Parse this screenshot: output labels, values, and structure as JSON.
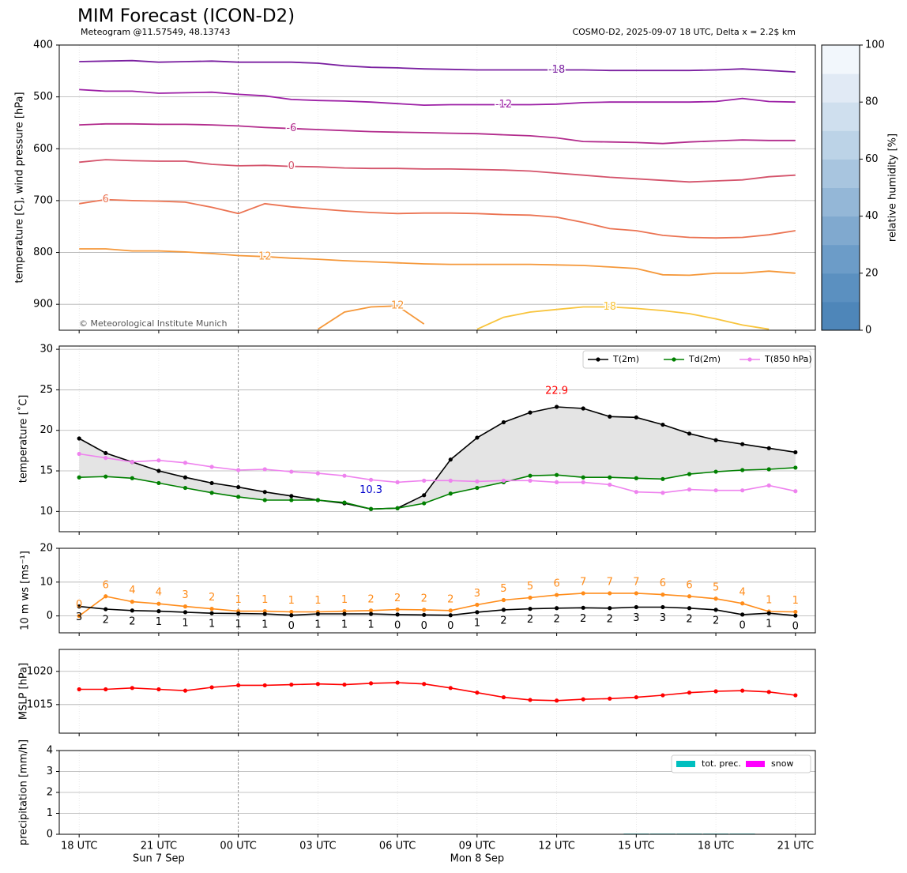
{
  "chart_data": [
    {
      "type": "contour",
      "title": "MIM Forecast (ICON-D2)",
      "subtitle": "Meteogram @11.57549, 48.13743",
      "source": "COSMO-D2, 2025-09-07 18 UTC, Delta x = 2.2$ km",
      "ylabel": "temperature [C], wind pressure [hPa]",
      "annotation": "© Meteorological Institute Munich",
      "x": [
        0,
        1,
        2,
        3,
        4,
        5,
        6,
        7,
        8,
        9,
        10,
        11,
        12,
        13,
        14,
        15,
        16,
        17,
        18,
        19,
        20,
        21,
        22,
        23,
        24,
        25,
        26,
        27
      ],
      "xlim": [
        -0.75,
        27.75
      ],
      "ylim": [
        950,
        400
      ],
      "yticks": [
        400,
        500,
        600,
        700,
        800,
        900
      ],
      "grid": true,
      "series": [
        {
          "name": "-18",
          "color": "#7a1fa0",
          "values": [
            432,
            431,
            430,
            433,
            432,
            431,
            433,
            433,
            433,
            435,
            440,
            443,
            444,
            446,
            447,
            448,
            448,
            448,
            448,
            448,
            449,
            449,
            449,
            449,
            448,
            446,
            449,
            452
          ]
        },
        {
          "name": "-12",
          "color": "#9c1fa5",
          "values": [
            486,
            489,
            489,
            493,
            492,
            491,
            495,
            498,
            505,
            507,
            508,
            510,
            513,
            516,
            515,
            515,
            515,
            515,
            514,
            511,
            510,
            510,
            510,
            510,
            509,
            503,
            509,
            510
          ]
        },
        {
          "name": "-6",
          "color": "#b22b8c",
          "values": [
            554,
            552,
            552,
            553,
            553,
            554,
            556,
            559,
            561,
            563,
            565,
            567,
            568,
            569,
            570,
            571,
            573,
            575,
            579,
            586,
            587,
            588,
            590,
            587,
            585,
            583,
            584,
            584
          ]
        },
        {
          "name": "0",
          "color": "#d4536b",
          "values": [
            626,
            621,
            623,
            624,
            624,
            630,
            633,
            632,
            634,
            635,
            637,
            638,
            638,
            639,
            639,
            640,
            641,
            643,
            647,
            651,
            655,
            658,
            661,
            664,
            662,
            660,
            654,
            651
          ]
        },
        {
          "name": "6",
          "color": "#eb7352",
          "values": [
            706,
            698,
            700,
            701,
            703,
            713,
            725,
            706,
            712,
            716,
            720,
            723,
            725,
            724,
            724,
            725,
            727,
            728,
            732,
            742,
            754,
            758,
            767,
            771,
            772,
            771,
            766,
            758
          ]
        },
        {
          "name": "12",
          "color": "#f5983a",
          "values": [
            793,
            793,
            797,
            797,
            799,
            802,
            806,
            808,
            811,
            813,
            816,
            818,
            820,
            822,
            823,
            823,
            823,
            823,
            824,
            825,
            828,
            831,
            843,
            844,
            840,
            840,
            836,
            840
          ]
        },
        {
          "name": "12",
          "color": "#f5983a",
          "values": [
            null,
            null,
            null,
            null,
            null,
            null,
            null,
            null,
            null,
            948,
            915,
            905,
            903,
            938,
            null,
            null,
            null,
            null,
            null,
            null,
            null,
            null,
            null,
            null,
            null,
            null,
            null,
            null
          ]
        },
        {
          "name": "18",
          "color": "#f8c43c",
          "values": [
            null,
            null,
            null,
            null,
            null,
            null,
            null,
            null,
            null,
            null,
            null,
            null,
            null,
            null,
            null,
            948,
            925,
            915,
            910,
            905,
            905,
            908,
            912,
            918,
            928,
            940,
            948,
            null
          ]
        }
      ],
      "colorbar": {
        "label": "relative humidity [%]",
        "lim": [
          0,
          100
        ],
        "ticks": [
          0,
          20,
          40,
          60,
          80,
          100
        ],
        "colors": [
          "#4e86b9",
          "#5b90c0",
          "#6c9cc8",
          "#80a9cf",
          "#94b7d7",
          "#a8c5df",
          "#bcd3e7",
          "#cfdfee",
          "#e1eaf5",
          "#f2f7fc"
        ]
      }
    },
    {
      "type": "line",
      "ylabel": "temperature [˚C]",
      "x": [
        0,
        1,
        2,
        3,
        4,
        5,
        6,
        7,
        8,
        9,
        10,
        11,
        12,
        13,
        14,
        15,
        16,
        17,
        18,
        19,
        20,
        21,
        22,
        23,
        24,
        25,
        26,
        27
      ],
      "xlim": [
        -0.75,
        27.75
      ],
      "ylim": [
        7.5,
        30.4
      ],
      "yticks": [
        10,
        15,
        20,
        25,
        30
      ],
      "grid": true,
      "markers": true,
      "fill_between": true,
      "fill_color": "#e4e4e4",
      "legend": "upper right",
      "max_label": "22.9",
      "max_label_color": "#ff0000",
      "min_label": "10.3",
      "min_label_color": "#0000cc",
      "series": [
        {
          "name": "T(2m)",
          "color": "#000000",
          "values": [
            19.0,
            17.2,
            16.1,
            15.0,
            14.2,
            13.5,
            13.0,
            12.4,
            11.9,
            11.4,
            11.0,
            10.3,
            10.4,
            12.0,
            16.4,
            19.1,
            21.0,
            22.2,
            22.9,
            22.7,
            21.7,
            21.6,
            20.7,
            19.6,
            18.8,
            18.3,
            17.8,
            17.3
          ]
        },
        {
          "name": "Td(2m)",
          "color": "#008000",
          "values": [
            14.2,
            14.3,
            14.1,
            13.5,
            12.9,
            12.3,
            11.8,
            11.4,
            11.4,
            11.4,
            11.1,
            10.3,
            10.4,
            11.0,
            12.2,
            12.9,
            13.6,
            14.4,
            14.5,
            14.2,
            14.2,
            14.1,
            14.0,
            14.6,
            14.9,
            15.1,
            15.2,
            15.4
          ]
        },
        {
          "name": "T(850 hPa)",
          "color": "#ee82ee",
          "values": [
            17.1,
            16.6,
            16.1,
            16.3,
            16.0,
            15.5,
            15.1,
            15.2,
            14.9,
            14.7,
            14.4,
            13.9,
            13.6,
            13.8,
            13.8,
            13.7,
            13.8,
            13.8,
            13.6,
            13.6,
            13.3,
            12.4,
            12.3,
            12.7,
            12.6,
            12.6,
            13.2,
            12.5
          ]
        }
      ]
    },
    {
      "type": "line",
      "ylabel": "10 m ws [ms⁻¹]",
      "x": [
        0,
        1,
        2,
        3,
        4,
        5,
        6,
        7,
        8,
        9,
        10,
        11,
        12,
        13,
        14,
        15,
        16,
        17,
        18,
        19,
        20,
        21,
        22,
        23,
        24,
        25,
        26,
        27
      ],
      "xlim": [
        -0.75,
        27.75
      ],
      "ylim": [
        -5,
        20
      ],
      "yticks": [
        0,
        10,
        20
      ],
      "grid": true,
      "markers": true,
      "series": [
        {
          "color": "#ff8c1a",
          "values": [
            0.0,
            5.8,
            4.2,
            3.6,
            2.8,
            2.1,
            1.4,
            1.4,
            1.2,
            1.2,
            1.4,
            1.6,
            1.9,
            1.8,
            1.6,
            3.3,
            4.7,
            5.4,
            6.2,
            6.7,
            6.7,
            6.7,
            6.3,
            5.8,
            5.1,
            3.7,
            1.3,
            1.2
          ],
          "value_labels": [
            "0",
            "6",
            "4",
            "4",
            "3",
            "2",
            "1",
            "1",
            "1",
            "1",
            "1",
            "2",
            "2",
            "2",
            "2",
            "3",
            "5",
            "5",
            "6",
            "7",
            "7",
            "7",
            "6",
            "6",
            "5",
            "4",
            "1",
            "1"
          ]
        },
        {
          "color": "#000000",
          "values": [
            2.8,
            2.0,
            1.6,
            1.4,
            1.1,
            0.8,
            0.7,
            0.6,
            0.2,
            0.6,
            0.6,
            0.6,
            0.4,
            0.3,
            0.2,
            1.1,
            1.8,
            2.1,
            2.3,
            2.4,
            2.3,
            2.6,
            2.6,
            2.3,
            1.8,
            0.4,
            0.8,
            0.1
          ],
          "value_labels": [
            "3",
            "2",
            "2",
            "1",
            "1",
            "1",
            "1",
            "1",
            "0",
            "1",
            "1",
            "1",
            "0",
            "0",
            "0",
            "1",
            "2",
            "2",
            "2",
            "2",
            "2",
            "3",
            "3",
            "2",
            "2",
            "0",
            "1",
            "0"
          ]
        }
      ]
    },
    {
      "type": "line",
      "ylabel": "MSLP [hPa]",
      "x": [
        0,
        1,
        2,
        3,
        4,
        5,
        6,
        7,
        8,
        9,
        10,
        11,
        12,
        13,
        14,
        15,
        16,
        17,
        18,
        19,
        20,
        21,
        22,
        23,
        24,
        25,
        26,
        27
      ],
      "xlim": [
        -0.75,
        27.75
      ],
      "ylim": [
        1010.7,
        1023.3
      ],
      "yticks": [
        1015,
        1020
      ],
      "grid": true,
      "markers": true,
      "series": [
        {
          "color": "#ff0000",
          "values": [
            1017.3,
            1017.3,
            1017.5,
            1017.3,
            1017.1,
            1017.6,
            1017.9,
            1017.9,
            1018.0,
            1018.1,
            1018.0,
            1018.2,
            1018.3,
            1018.1,
            1017.5,
            1016.8,
            1016.1,
            1015.7,
            1015.6,
            1015.8,
            1015.9,
            1016.1,
            1016.4,
            1016.8,
            1017.0,
            1017.1,
            1016.9,
            1016.4
          ]
        }
      ]
    },
    {
      "type": "bar",
      "ylabel": "precipitation [mm/h]",
      "x": [
        0,
        1,
        2,
        3,
        4,
        5,
        6,
        7,
        8,
        9,
        10,
        11,
        12,
        13,
        14,
        15,
        16,
        17,
        18,
        19,
        20,
        21,
        22,
        23,
        24,
        25,
        26,
        27
      ],
      "xlim": [
        -0.75,
        27.75
      ],
      "ylim": [
        0,
        4
      ],
      "yticks": [
        0,
        1,
        2,
        3,
        4
      ],
      "grid": true,
      "legend": "upper right",
      "xticks": [
        {
          "value": 0,
          "label": "18 UTC"
        },
        {
          "value": 3,
          "label": "21 UTC"
        },
        {
          "value": 6,
          "label": "00 UTC"
        },
        {
          "value": 9,
          "label": "03 UTC"
        },
        {
          "value": 12,
          "label": "06 UTC"
        },
        {
          "value": 15,
          "label": "09 UTC"
        },
        {
          "value": 18,
          "label": "12 UTC"
        },
        {
          "value": 21,
          "label": "15 UTC"
        },
        {
          "value": 24,
          "label": "18 UTC"
        },
        {
          "value": 27,
          "label": "21 UTC"
        }
      ],
      "x_dates": [
        {
          "value": 3,
          "label": "Sun 7 Sep"
        },
        {
          "value": 15,
          "label": "Mon 8 Sep"
        }
      ],
      "series": [
        {
          "name": "tot. prec.",
          "color": "#00bfbf",
          "values": [
            0,
            0,
            0,
            0,
            0,
            0,
            0,
            0,
            0,
            0,
            0,
            0,
            0,
            0,
            0,
            0,
            0,
            0,
            0,
            0,
            0,
            0.03,
            0.03,
            0.03,
            0.03,
            0.03,
            0,
            0
          ]
        },
        {
          "name": "snow",
          "color": "#ff00ff",
          "values": [
            0,
            0,
            0,
            0,
            0,
            0,
            0,
            0,
            0,
            0,
            0,
            0,
            0,
            0,
            0,
            0,
            0,
            0,
            0,
            0,
            0,
            0,
            0,
            0,
            0,
            0,
            0,
            0
          ]
        }
      ]
    }
  ]
}
